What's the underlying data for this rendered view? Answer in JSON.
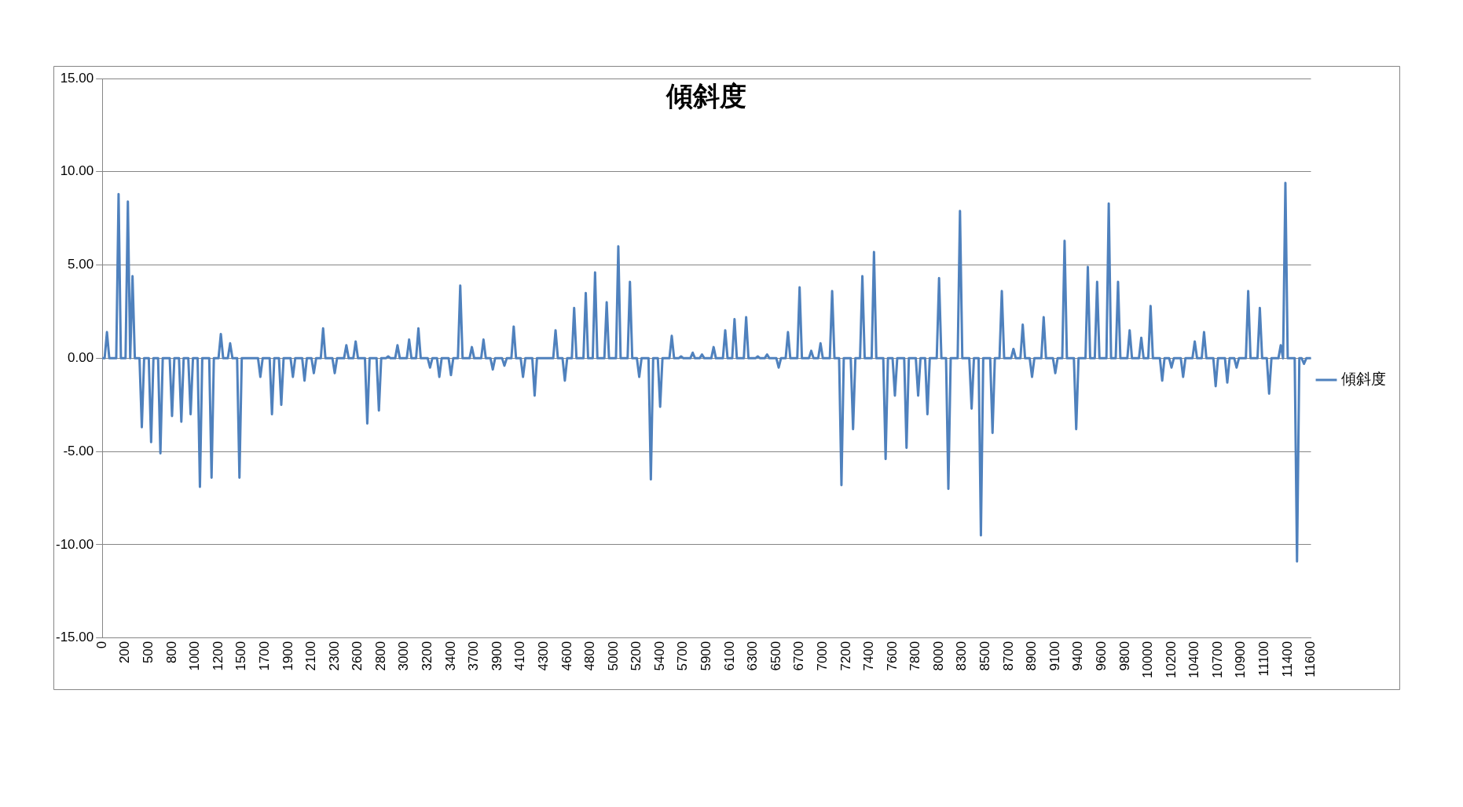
{
  "chart_data": {
    "type": "line",
    "title": "傾斜度",
    "categories": [
      "0",
      null,
      null,
      null,
      null,
      null,
      null,
      null,
      null,
      null,
      "200",
      null,
      null,
      null,
      null,
      null,
      null,
      null,
      null,
      null,
      "500",
      null,
      null,
      null,
      null,
      null,
      null,
      null,
      null,
      null,
      "800",
      null,
      null,
      null,
      null,
      null,
      null,
      null,
      null,
      null,
      "1000",
      null,
      null,
      null,
      null,
      null,
      null,
      null,
      null,
      null,
      "1200",
      null,
      null,
      null,
      null,
      null,
      null,
      null,
      null,
      null,
      "1500",
      null,
      null,
      null,
      null,
      null,
      null,
      null,
      null,
      null,
      "1700",
      null,
      null,
      null,
      null,
      null,
      null,
      null,
      null,
      null,
      "1900",
      null,
      null,
      null,
      null,
      null,
      null,
      null,
      null,
      null,
      "2100",
      null,
      null,
      null,
      null,
      null,
      null,
      null,
      null,
      null,
      "2300",
      null,
      null,
      null,
      null,
      null,
      null,
      null,
      null,
      null,
      "2600",
      null,
      null,
      null,
      null,
      null,
      null,
      null,
      null,
      null,
      "2800",
      null,
      null,
      null,
      null,
      null,
      null,
      null,
      null,
      null,
      "3000",
      null,
      null,
      null,
      null,
      null,
      null,
      null,
      null,
      null,
      "3200",
      null,
      null,
      null,
      null,
      null,
      null,
      null,
      null,
      null,
      "3400",
      null,
      null,
      null,
      null,
      null,
      null,
      null,
      null,
      null,
      "3700",
      null,
      null,
      null,
      null,
      null,
      null,
      null,
      null,
      null,
      "3900",
      null,
      null,
      null,
      null,
      null,
      null,
      null,
      null,
      null,
      "4100",
      null,
      null,
      null,
      null,
      null,
      null,
      null,
      null,
      null,
      "4300",
      null,
      null,
      null,
      null,
      null,
      null,
      null,
      null,
      null,
      "4600",
      null,
      null,
      null,
      null,
      null,
      null,
      null,
      null,
      null,
      "4800",
      null,
      null,
      null,
      null,
      null,
      null,
      null,
      null,
      null,
      "5000",
      null,
      null,
      null,
      null,
      null,
      null,
      null,
      null,
      null,
      "5200",
      null,
      null,
      null,
      null,
      null,
      null,
      null,
      null,
      null,
      "5400",
      null,
      null,
      null,
      null,
      null,
      null,
      null,
      null,
      null,
      "5700",
      null,
      null,
      null,
      null,
      null,
      null,
      null,
      null,
      null,
      "5900",
      null,
      null,
      null,
      null,
      null,
      null,
      null,
      null,
      null,
      "6100",
      null,
      null,
      null,
      null,
      null,
      null,
      null,
      null,
      null,
      "6300",
      null,
      null,
      null,
      null,
      null,
      null,
      null,
      null,
      null,
      "6500",
      null,
      null,
      null,
      null,
      null,
      null,
      null,
      null,
      null,
      "6700",
      null,
      null,
      null,
      null,
      null,
      null,
      null,
      null,
      null,
      "7000",
      null,
      null,
      null,
      null,
      null,
      null,
      null,
      null,
      null,
      "7200",
      null,
      null,
      null,
      null,
      null,
      null,
      null,
      null,
      null,
      "7400",
      null,
      null,
      null,
      null,
      null,
      null,
      null,
      null,
      null,
      "7600",
      null,
      null,
      null,
      null,
      null,
      null,
      null,
      null,
      null,
      "7800",
      null,
      null,
      null,
      null,
      null,
      null,
      null,
      null,
      null,
      "8000",
      null,
      null,
      null,
      null,
      null,
      null,
      null,
      null,
      null,
      "8300",
      null,
      null,
      null,
      null,
      null,
      null,
      null,
      null,
      null,
      "8500",
      null,
      null,
      null,
      null,
      null,
      null,
      null,
      null,
      null,
      "8700",
      null,
      null,
      null,
      null,
      null,
      null,
      null,
      null,
      null,
      "8900",
      null,
      null,
      null,
      null,
      null,
      null,
      null,
      null,
      null,
      "9100",
      null,
      null,
      null,
      null,
      null,
      null,
      null,
      null,
      null,
      "9400",
      null,
      null,
      null,
      null,
      null,
      null,
      null,
      null,
      null,
      "9600",
      null,
      null,
      null,
      null,
      null,
      null,
      null,
      null,
      null,
      "9800",
      null,
      null,
      null,
      null,
      null,
      null,
      null,
      null,
      null,
      "10000",
      null,
      null,
      null,
      null,
      null,
      null,
      null,
      null,
      null,
      "10200",
      null,
      null,
      null,
      null,
      null,
      null,
      null,
      null,
      null,
      "10400",
      null,
      null,
      null,
      null,
      null,
      null,
      null,
      null,
      null,
      "10700",
      null,
      null,
      null,
      null,
      null,
      null,
      null,
      null,
      null,
      "10900",
      null,
      null,
      null,
      null,
      null,
      null,
      null,
      null,
      null,
      "11100",
      null,
      null,
      null,
      null,
      null,
      null,
      null,
      null,
      null,
      "11400",
      null,
      null,
      null,
      null,
      null,
      null,
      null,
      null,
      null,
      "11600"
    ],
    "series": [
      {
        "name": "傾斜度",
        "color": "#4f81bd",
        "values": [
          0,
          0,
          1.4,
          0,
          0,
          0,
          0,
          8.8,
          0,
          0,
          0,
          8.4,
          0,
          4.4,
          0,
          0,
          0,
          -3.7,
          0,
          0,
          0,
          -4.5,
          0,
          0,
          0,
          -5.1,
          0,
          0,
          0,
          0,
          -3.1,
          0,
          0,
          0,
          -3.4,
          0,
          0,
          0,
          -3,
          0,
          0,
          0,
          -6.9,
          0,
          0,
          0,
          0,
          -6.4,
          0,
          0,
          0,
          1.3,
          0,
          0,
          0,
          0.8,
          0,
          0,
          0,
          -6.4,
          0,
          0,
          0,
          0,
          0,
          0,
          0,
          0,
          -1,
          0,
          0,
          0,
          0,
          -3,
          0,
          0,
          0,
          -2.5,
          0,
          0,
          0,
          0,
          -1,
          0,
          0,
          0,
          0,
          -1.2,
          0,
          0,
          0,
          -0.8,
          0,
          0,
          0,
          1.6,
          0,
          0,
          0,
          0,
          -0.8,
          0,
          0,
          0,
          0,
          0.7,
          0,
          0,
          0,
          0.9,
          0,
          0,
          0,
          0,
          -3.5,
          0,
          0,
          0,
          0,
          -2.8,
          0,
          0,
          0,
          0.1,
          0,
          0,
          0,
          0.7,
          0,
          0,
          0,
          0,
          1,
          0,
          0,
          0,
          1.6,
          0,
          0,
          0,
          0,
          -0.5,
          0,
          0,
          0,
          -1,
          0,
          0,
          0,
          0,
          -0.9,
          0,
          0,
          0,
          3.9,
          0,
          0,
          0,
          0,
          0.6,
          0,
          0,
          0,
          0,
          1,
          0,
          0,
          0,
          -0.6,
          0,
          0,
          0,
          0,
          -0.4,
          0,
          0,
          0,
          1.7,
          0,
          0,
          0,
          -1,
          0,
          0,
          0,
          0,
          -2,
          0,
          0,
          0,
          0,
          0,
          0,
          0,
          0,
          1.5,
          0,
          0,
          0,
          -1.2,
          0,
          0,
          0,
          2.7,
          0,
          0,
          0,
          0,
          3.5,
          0,
          0,
          0,
          4.6,
          0,
          0,
          0,
          0,
          3,
          0,
          0,
          0,
          0,
          6,
          0,
          0,
          0,
          0,
          4.1,
          0,
          0,
          0,
          -1,
          0,
          0,
          0,
          0,
          -6.5,
          0,
          0,
          0,
          -2.6,
          0,
          0,
          0,
          0,
          1.2,
          0,
          0,
          0,
          0.1,
          0,
          0,
          0,
          0,
          0.3,
          0,
          0,
          0,
          0.2,
          0,
          0,
          0,
          0,
          0.6,
          0,
          0,
          0,
          0,
          1.5,
          0,
          0,
          0,
          2.1,
          0,
          0,
          0,
          0,
          2.2,
          0,
          0,
          0,
          0,
          0.1,
          0,
          0,
          0,
          0.2,
          0,
          0,
          0,
          0,
          -0.5,
          0,
          0,
          0,
          1.4,
          0,
          0,
          0,
          0,
          3.8,
          0,
          0,
          0,
          0,
          0.4,
          0,
          0,
          0,
          0.8,
          0,
          0,
          0,
          0,
          3.6,
          0,
          0,
          0,
          -6.8,
          0,
          0,
          0,
          0,
          -3.8,
          0,
          0,
          0,
          4.4,
          0,
          0,
          0,
          0,
          5.7,
          0,
          0,
          0,
          0,
          -5.4,
          0,
          0,
          0,
          -2,
          0,
          0,
          0,
          0,
          -4.8,
          0,
          0,
          0,
          0,
          -2,
          0,
          0,
          0,
          -3,
          0,
          0,
          0,
          0,
          4.3,
          0,
          0,
          0,
          -7,
          0,
          0,
          0,
          0,
          7.9,
          0,
          0,
          0,
          0,
          -2.7,
          0,
          0,
          0,
          -9.5,
          0,
          0,
          0,
          0,
          -4,
          0,
          0,
          0,
          3.6,
          0,
          0,
          0,
          0,
          0.5,
          0,
          0,
          0,
          1.8,
          0,
          0,
          0,
          -1,
          0,
          0,
          0,
          0,
          2.2,
          0,
          0,
          0,
          0,
          -0.8,
          0,
          0,
          0,
          6.3,
          0,
          0,
          0,
          0,
          -3.8,
          0,
          0,
          0,
          0,
          4.9,
          0,
          0,
          0,
          4.1,
          0,
          0,
          0,
          0,
          8.3,
          0,
          0,
          0,
          4.1,
          0,
          0,
          0,
          0,
          1.5,
          0,
          0,
          0,
          0,
          1.1,
          0,
          0,
          0,
          2.8,
          0,
          0,
          0,
          0,
          -1.2,
          0,
          0,
          0,
          -0.5,
          0,
          0,
          0,
          0,
          -1,
          0,
          0,
          0,
          0,
          0.9,
          0,
          0,
          0,
          1.4,
          0,
          0,
          0,
          0,
          -1.5,
          0,
          0,
          0,
          0,
          -1.3,
          0,
          0,
          0,
          -0.5,
          0,
          0,
          0,
          0,
          3.6,
          0,
          0,
          0,
          0,
          2.7,
          0,
          0,
          0,
          -1.9,
          0,
          0,
          0,
          0,
          0.7,
          0,
          9.4,
          0,
          0,
          0,
          0,
          -10.9,
          0,
          0,
          -0.3,
          0,
          0,
          0
        ]
      }
    ],
    "ylim": [
      -15,
      15
    ],
    "yticks": [
      {
        "value": -15,
        "label": "-15.00"
      },
      {
        "value": -10,
        "label": "-10.00"
      },
      {
        "value": -5,
        "label": "-5.00"
      },
      {
        "value": 0,
        "label": "0.00"
      },
      {
        "value": 5,
        "label": "5.00"
      },
      {
        "value": 10,
        "label": "10.00"
      },
      {
        "value": 15,
        "label": "15.00"
      }
    ],
    "grid": "y",
    "legend": "right",
    "marker": "none",
    "line_style": "solid"
  }
}
